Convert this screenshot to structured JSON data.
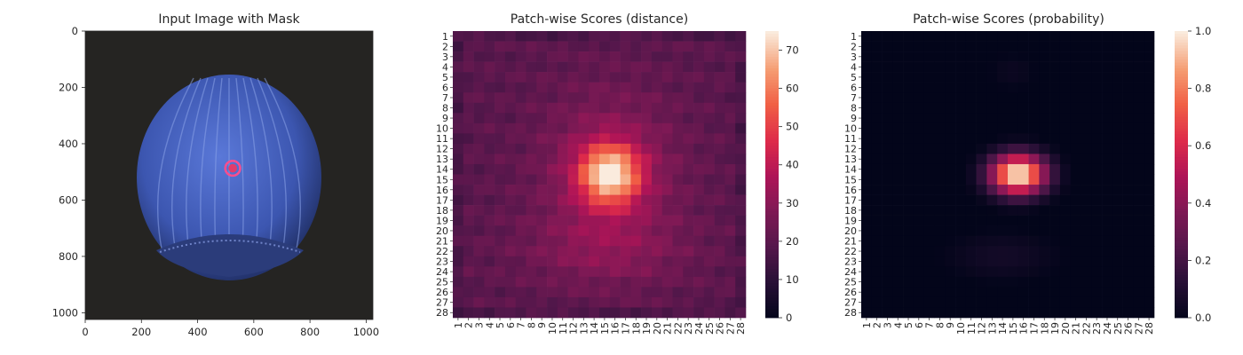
{
  "chart_data": [
    {
      "type": "image",
      "title": "Input Image with Mask",
      "x_ticks": [
        0,
        200,
        400,
        600,
        800,
        1000
      ],
      "y_ticks": [
        0,
        200,
        400,
        600,
        800,
        1000
      ],
      "xlim": [
        0,
        1024
      ],
      "ylim": [
        1024,
        0
      ],
      "object": "blue-tinted hazelnut",
      "mask_circle": {
        "cx": 525,
        "cy": 487,
        "r": 20,
        "color": "#ff4d8d"
      }
    },
    {
      "type": "heatmap",
      "title": "Patch-wise Scores (distance)",
      "x_tick_labels": [
        "1",
        "2",
        "3",
        "4",
        "5",
        "6",
        "7",
        "8",
        "9",
        "10",
        "11",
        "12",
        "13",
        "14",
        "15",
        "16",
        "17",
        "18",
        "19",
        "20",
        "21",
        "22",
        "23",
        "24",
        "25",
        "26",
        "27",
        "28"
      ],
      "y_tick_labels": [
        "1",
        "2",
        "3",
        "4",
        "5",
        "6",
        "7",
        "8",
        "9",
        "10",
        "11",
        "12",
        "13",
        "14",
        "15",
        "16",
        "17",
        "18",
        "19",
        "20",
        "21",
        "22",
        "23",
        "24",
        "25",
        "26",
        "27",
        "28"
      ],
      "colorbar": {
        "min": 0,
        "max": 75,
        "ticks": [
          0,
          10,
          20,
          30,
          40,
          50,
          60,
          70
        ]
      },
      "colormap": "rocket",
      "background_level": 22,
      "peak": {
        "row": 14.5,
        "col": 15.5,
        "value": 75
      }
    },
    {
      "type": "heatmap",
      "title": "Patch-wise Scores (probability)",
      "x_tick_labels": [
        "1",
        "2",
        "3",
        "4",
        "5",
        "6",
        "7",
        "8",
        "9",
        "10",
        "11",
        "12",
        "13",
        "14",
        "15",
        "16",
        "17",
        "18",
        "19",
        "20",
        "21",
        "22",
        "23",
        "24",
        "25",
        "26",
        "27",
        "28"
      ],
      "y_tick_labels": [
        "1",
        "2",
        "3",
        "4",
        "5",
        "6",
        "7",
        "8",
        "9",
        "10",
        "11",
        "12",
        "13",
        "14",
        "15",
        "16",
        "17",
        "18",
        "19",
        "20",
        "21",
        "22",
        "23",
        "24",
        "25",
        "26",
        "27",
        "28"
      ],
      "colorbar": {
        "min": 0.0,
        "max": 1.0,
        "ticks": [
          "0.0",
          "0.2",
          "0.4",
          "0.6",
          "0.8",
          "1.0"
        ]
      },
      "colormap": "rocket",
      "background_level": 0.0,
      "peak": {
        "row": 14.5,
        "col": 15.5,
        "value": 1.0
      }
    }
  ]
}
